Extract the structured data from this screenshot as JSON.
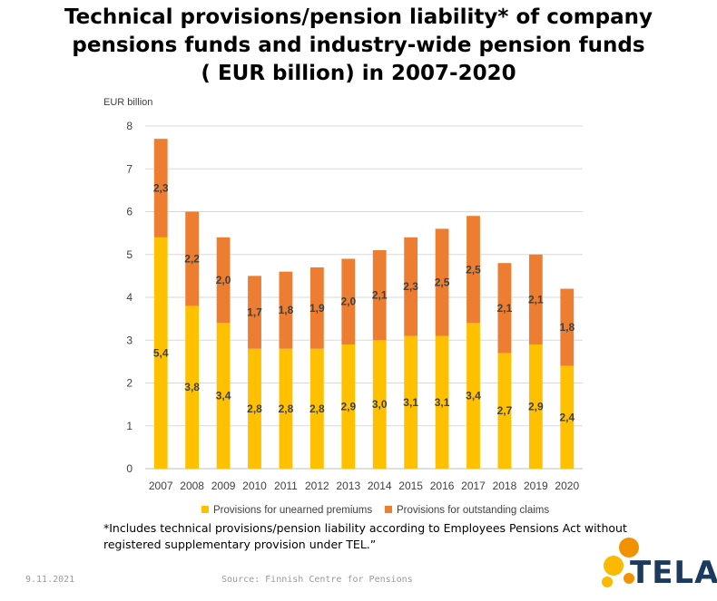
{
  "title": {
    "line1": "Technical provisions/pension liability* of company",
    "line2": "pensions funds and industry-wide pension funds",
    "line3": "( EUR billion) in 2007-2020"
  },
  "footnote": {
    "line1": "*Includes technical provisions/pension liability according to Employees Pensions Act without",
    "line2": "registered supplementary provision under TEL.”"
  },
  "footer": {
    "date": "9.11.2021",
    "source": "Source: Finnish Centre for Pensions",
    "logo_text": "TELA"
  },
  "chart_data": {
    "type": "bar",
    "stacked": true,
    "ylabel": "EUR billion",
    "ylim": [
      0,
      8
    ],
    "yticks": [
      "0",
      "1",
      "2",
      "3",
      "4",
      "5",
      "6",
      "7",
      "8"
    ],
    "grid": true,
    "legend_position": "bottom",
    "categories": [
      "2007",
      "2008",
      "2009",
      "2010",
      "2011",
      "2012",
      "2013",
      "2014",
      "2015",
      "2016",
      "2017",
      "2018",
      "2019",
      "2020"
    ],
    "series": [
      {
        "name": "Provisions for unearned premiums",
        "color": "#FFC000",
        "values": [
          5.4,
          3.8,
          3.4,
          2.8,
          2.8,
          2.8,
          2.9,
          3.0,
          3.1,
          3.1,
          3.4,
          2.7,
          2.9,
          2.4
        ],
        "labels": [
          "5,4",
          "3,8",
          "3,4",
          "2,8",
          "2,8",
          "2,8",
          "2,9",
          "3,0",
          "3,1",
          "3,1",
          "3,4",
          "2,7",
          "2,9",
          "2,4"
        ]
      },
      {
        "name": "Provisions for outstanding claims",
        "color": "#ED7D31",
        "values": [
          2.3,
          2.2,
          2.0,
          1.7,
          1.8,
          1.9,
          2.0,
          2.1,
          2.3,
          2.5,
          2.5,
          2.1,
          2.1,
          1.8
        ],
        "labels": [
          "2,3",
          "2,2",
          "2,0",
          "1,7",
          "1,8",
          "1,9",
          "2,0",
          "2,1",
          "2,3",
          "2,5",
          "2,5",
          "2,1",
          "2,1",
          "1,8"
        ]
      }
    ]
  },
  "colors": {
    "gridline": "#d9d9d9",
    "axis_text": "#404040",
    "logo_orange": "#F39200",
    "logo_yellow": "#FBB900",
    "logo_navy": "#1c3a5e"
  }
}
